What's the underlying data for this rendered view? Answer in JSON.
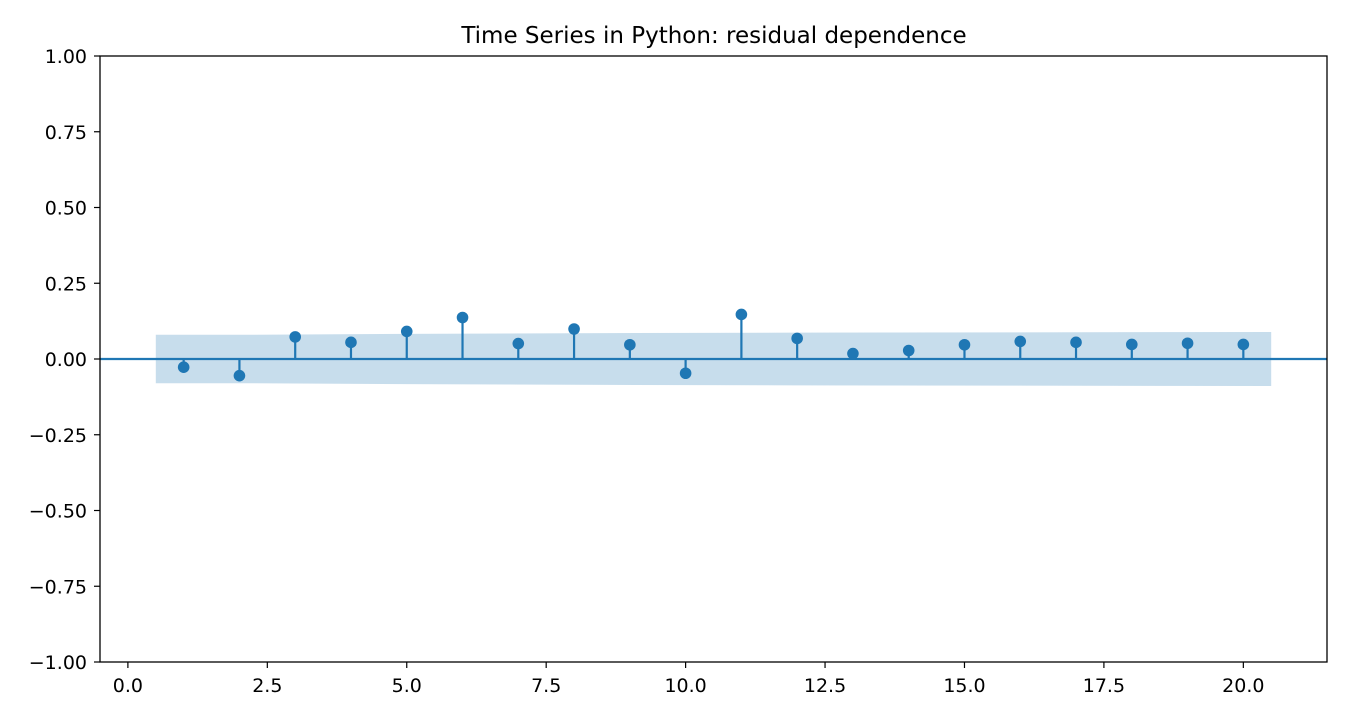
{
  "chart_data": {
    "type": "stem",
    "title": "Time Series in Python: residual dependence",
    "xlabel": "",
    "ylabel": "",
    "xlim": [
      -0.5,
      21.5
    ],
    "ylim": [
      -1.0,
      1.0
    ],
    "x_ticks": [
      0.0,
      2.5,
      5.0,
      7.5,
      10.0,
      12.5,
      15.0,
      17.5,
      20.0
    ],
    "x_tick_labels": [
      "0.0",
      "2.5",
      "5.0",
      "7.5",
      "10.0",
      "12.5",
      "15.0",
      "17.5",
      "20.0"
    ],
    "y_ticks": [
      -1.0,
      -0.75,
      -0.5,
      -0.25,
      0.0,
      0.25,
      0.5,
      0.75,
      1.0
    ],
    "y_tick_labels": [
      "−1.00",
      "−0.75",
      "−0.50",
      "−0.25",
      "0.00",
      "0.25",
      "0.50",
      "0.75",
      "1.00"
    ],
    "grid": false,
    "series": [
      {
        "x": [
          1,
          2,
          3,
          4,
          5,
          6,
          7,
          8,
          9,
          10,
          11,
          12,
          13,
          14,
          15,
          16,
          17,
          18,
          19,
          20
        ],
        "values": [
          -0.027,
          -0.055,
          0.073,
          0.055,
          0.091,
          0.137,
          0.051,
          0.099,
          0.047,
          -0.047,
          0.147,
          0.068,
          0.018,
          0.028,
          0.047,
          0.058,
          0.055,
          0.048,
          0.052,
          0.048
        ]
      }
    ],
    "confidence_band": {
      "x": [
        0.5,
        2.0,
        5.0,
        8.0,
        12.0,
        20.5
      ],
      "upper": [
        0.08,
        0.08,
        0.083,
        0.085,
        0.087,
        0.089
      ],
      "lower": [
        -0.08,
        -0.08,
        -0.083,
        -0.085,
        -0.087,
        -0.089
      ]
    },
    "colors": {
      "series": "#1f77b4",
      "band": "#1f77b4",
      "axes": "#000000"
    }
  }
}
